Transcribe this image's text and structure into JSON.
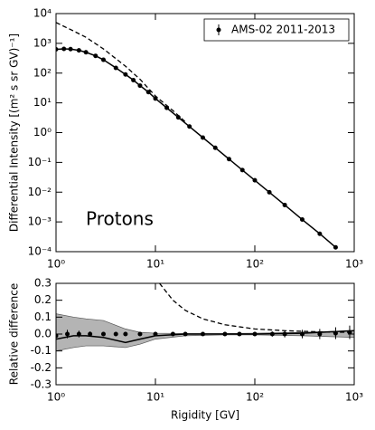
{
  "chart_data": [
    {
      "type": "line",
      "ylabel": "Differential Intensity [(m² s sr GV)⁻¹]",
      "annotation": "Protons",
      "xscale": "log",
      "yscale": "log",
      "xlim": [
        1,
        1000
      ],
      "ylim": [
        0.0001,
        10000
      ],
      "xticks": [
        {
          "value": 1,
          "label": "10⁰"
        },
        {
          "value": 10,
          "label": "10¹"
        },
        {
          "value": 100,
          "label": "10²"
        },
        {
          "value": 1000,
          "label": "10³"
        }
      ],
      "yticks": [
        {
          "value": 0.0001,
          "label": "10⁻⁴"
        },
        {
          "value": 0.001,
          "label": "10⁻³"
        },
        {
          "value": 0.01,
          "label": "10⁻²"
        },
        {
          "value": 0.1,
          "label": "10⁻¹"
        },
        {
          "value": 1,
          "label": "10⁰"
        },
        {
          "value": 10,
          "label": "10¹"
        },
        {
          "value": 100,
          "label": "10²"
        },
        {
          "value": 1000,
          "label": "10³"
        },
        {
          "value": 10000,
          "label": "10⁴"
        }
      ],
      "legend": "upper right",
      "series": [
        {
          "name": "AMS-02 2011-2013",
          "color": "#000000",
          "line": "solid",
          "marker": true,
          "x": [
            1,
            1.2,
            1.4,
            1.7,
            2,
            2.5,
            3,
            4,
            5,
            6,
            7,
            8.5,
            10,
            13,
            17,
            22,
            30,
            40,
            55,
            75,
            100,
            140,
            200,
            300,
            450,
            650
          ],
          "values": [
            630,
            650,
            640,
            580,
            500,
            380,
            280,
            150,
            90,
            58,
            38,
            23,
            14,
            6.8,
            3.25,
            1.6,
            0.68,
            0.31,
            0.129,
            0.055,
            0.025,
            0.0099,
            0.0037,
            0.0012,
            0.0004,
            0.00014
          ]
        },
        {
          "color": "#000000",
          "line": "dashed",
          "x": [
            1,
            1.5,
            2,
            3,
            5,
            7,
            10,
            15,
            20
          ],
          "values": [
            5000,
            2600,
            1600,
            650,
            170,
            62,
            17,
            5.5,
            2.3
          ]
        }
      ]
    },
    {
      "type": "line",
      "xlabel": "Rigidity [GV]",
      "ylabel": "Relative difference",
      "xscale": "log",
      "xlim": [
        1,
        1000
      ],
      "ylim": [
        -0.3,
        0.3
      ],
      "xticks": [
        {
          "value": 1,
          "label": "10⁰"
        },
        {
          "value": 10,
          "label": "10¹"
        },
        {
          "value": 100,
          "label": "10²"
        },
        {
          "value": 1000,
          "label": "10³"
        }
      ],
      "yticks": [
        -0.3,
        -0.2,
        -0.1,
        {
          "value": 0,
          "label": "0.0"
        },
        0.1,
        0.2,
        0.3
      ],
      "band": {
        "color": "#b4b4b4",
        "x": [
          1,
          1.5,
          2,
          3,
          5,
          7,
          10,
          20,
          50,
          100,
          300,
          1000
        ],
        "upper": [
          0.12,
          0.1,
          0.09,
          0.08,
          0.03,
          0.01,
          0.005,
          0.003,
          0.003,
          0.005,
          0.01,
          0.02
        ],
        "lower": [
          -0.1,
          -0.08,
          -0.07,
          -0.07,
          -0.08,
          -0.06,
          -0.03,
          -0.01,
          -0.005,
          -0.005,
          -0.01,
          -0.02
        ]
      },
      "series": [
        {
          "color": "#000000",
          "line": "solid",
          "x": [
            1,
            1.5,
            2,
            3,
            5,
            7,
            10,
            20,
            50,
            100,
            300,
            1000
          ],
          "values": [
            -0.03,
            -0.01,
            -0.01,
            -0.02,
            -0.05,
            -0.03,
            -0.01,
            0,
            0,
            0,
            0.005,
            0.02
          ]
        },
        {
          "color": "#000000",
          "line": "dashed",
          "x": [
            11,
            15,
            20,
            30,
            50,
            100,
            200,
            500,
            1000
          ],
          "values": [
            0.3,
            0.2,
            0.14,
            0.09,
            0.055,
            0.03,
            0.02,
            0.012,
            0.01
          ]
        },
        {
          "color": "#000000",
          "marker": true,
          "x": [
            1,
            1.3,
            1.7,
            2.2,
            3,
            4,
            5,
            7,
            10,
            15,
            20,
            30,
            50,
            70,
            100,
            150,
            200,
            300,
            450,
            650,
            900
          ],
          "values": [
            -0.01,
            0,
            0,
            0,
            0,
            0,
            0,
            0,
            0,
            0,
            0,
            0,
            0,
            0,
            0,
            0,
            0,
            0,
            0,
            0.005,
            0.01
          ],
          "errors": [
            0.03,
            0.025,
            0.02,
            0.015,
            0.012,
            0.01,
            0.01,
            0.008,
            0.008,
            0.008,
            0.008,
            0.008,
            0.01,
            0.01,
            0.012,
            0.015,
            0.02,
            0.025,
            0.03,
            0.035,
            0.04
          ]
        }
      ]
    }
  ]
}
